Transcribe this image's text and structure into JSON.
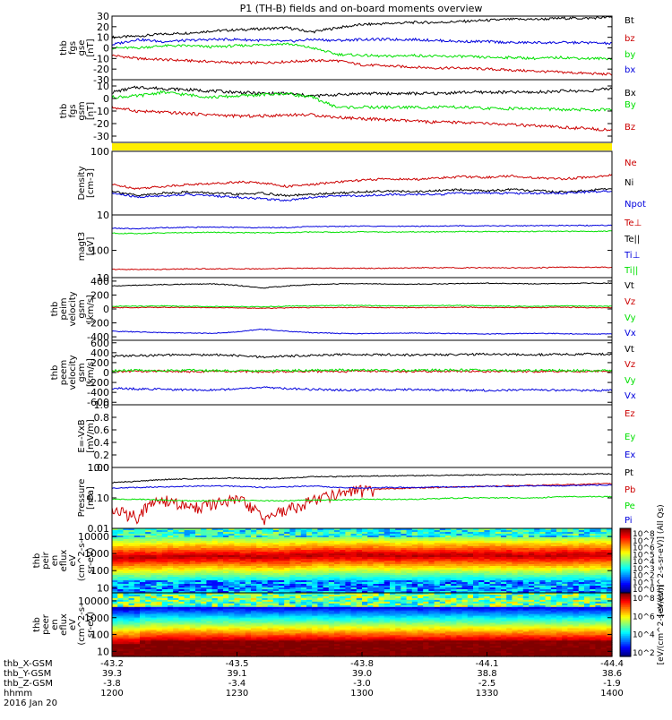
{
  "title": "P1 (TH-B) fields and on-board moments overview",
  "colors": {
    "black": "#000000",
    "red": "#cc0000",
    "green": "#00e000",
    "blue": "#0000dd",
    "yellow": "#ffee00"
  },
  "chart_data": [
    {
      "type": "line",
      "panel": "fgs_gse",
      "ylabel_lines": [
        "thb",
        "fgs",
        "gse",
        "[nT]"
      ],
      "ylim": [
        -30,
        30
      ],
      "yticks": [
        "30",
        "20",
        "10",
        "0",
        "-10",
        "-20",
        "-30"
      ],
      "series": [
        {
          "name": "Bt",
          "color": "black",
          "values": [
            10,
            11,
            13,
            14,
            16,
            17,
            18,
            19,
            15,
            19,
            22,
            23,
            24,
            24,
            25,
            26,
            27,
            27,
            28,
            28,
            29
          ]
        },
        {
          "name": "bz",
          "color": "red",
          "values": [
            -7,
            -10,
            -11,
            -12,
            -13,
            -14,
            -14,
            -13,
            -12,
            -12,
            -16,
            -17,
            -18,
            -19,
            -19,
            -20,
            -21,
            -22,
            -23,
            -24,
            -25
          ]
        },
        {
          "name": "by",
          "color": "green",
          "values": [
            0,
            0,
            2,
            2,
            1,
            2,
            3,
            4,
            0,
            -6,
            -7,
            -8,
            -7,
            -8,
            -8,
            -9,
            -9,
            -10,
            -9,
            -10,
            -10
          ]
        },
        {
          "name": "bx",
          "color": "blue",
          "values": [
            3,
            8,
            6,
            7,
            8,
            8,
            7,
            6,
            8,
            7,
            8,
            8,
            8,
            7,
            6,
            6,
            5,
            5,
            5,
            5,
            4
          ]
        }
      ]
    },
    {
      "type": "line",
      "panel": "fgs_gsm",
      "ylabel_lines": [
        "thb",
        "fgs",
        "gsm",
        "[nT]"
      ],
      "ylim": [
        -35,
        15
      ],
      "yticks": [
        "10",
        "0",
        "-10",
        "-20",
        "-30"
      ],
      "series": [
        {
          "name": "Bx",
          "color": "black",
          "values": [
            5,
            9,
            8,
            7,
            6,
            5,
            4,
            4,
            2,
            3,
            4,
            4,
            4,
            4,
            5,
            5,
            5,
            5,
            6,
            6,
            8
          ]
        },
        {
          "name": "By",
          "color": "green",
          "values": [
            1,
            2,
            5,
            3,
            1,
            2,
            3,
            4,
            1,
            -7,
            -7,
            -7,
            -7,
            -7,
            -7,
            -8,
            -8,
            -8,
            -9,
            -9,
            -9
          ]
        },
        {
          "name": "Bz",
          "color": "red",
          "values": [
            -7,
            -10,
            -11,
            -12,
            -13,
            -14,
            -14,
            -13,
            -13,
            -15,
            -16,
            -17,
            -18,
            -19,
            -19,
            -20,
            -21,
            -22,
            -23,
            -24,
            -25
          ]
        }
      ]
    },
    {
      "type": "line",
      "panel": "density",
      "scale": "log",
      "ylabel_lines": [
        "Density",
        "[cm-3]"
      ],
      "ylim": [
        10,
        100
      ],
      "yticks": [
        "100",
        "10"
      ],
      "series": [
        {
          "name": "Ne",
          "color": "red",
          "values": [
            30,
            26,
            28,
            30,
            31,
            33,
            32,
            28,
            30,
            33,
            35,
            37,
            36,
            38,
            40,
            39,
            41,
            38,
            37,
            39,
            42
          ]
        },
        {
          "name": "Ni",
          "color": "black",
          "values": [
            24,
            20,
            22,
            23,
            22,
            21,
            22,
            20,
            21,
            22,
            23,
            24,
            23,
            24,
            25,
            24,
            25,
            24,
            23,
            24,
            26
          ]
        },
        {
          "name": "Npot",
          "color": "blue",
          "values": [
            22,
            19,
            20,
            21,
            20,
            19,
            18,
            17,
            19,
            20,
            20,
            21,
            21,
            21,
            22,
            22,
            22,
            22,
            22,
            23,
            24
          ]
        }
      ]
    },
    {
      "type": "line",
      "panel": "temperature",
      "scale": "log",
      "ylabel_lines": [
        "magt3",
        "[eV]"
      ],
      "ylim": [
        10,
        2000
      ],
      "yticks": [
        "100",
        "10"
      ],
      "series": [
        {
          "name": "Te⊥",
          "color": "red",
          "values": [
            20,
            20,
            20,
            21,
            21,
            21,
            21,
            22,
            22,
            22,
            22,
            22,
            23,
            23,
            23,
            23,
            23,
            23,
            24,
            24,
            24
          ]
        },
        {
          "name": "Te||",
          "color": "black",
          "values": []
        },
        {
          "name": "Ti⊥",
          "color": "blue",
          "values": [
            650,
            620,
            680,
            700,
            720,
            700,
            680,
            690,
            750,
            760,
            780,
            760,
            770,
            780,
            800,
            790,
            800,
            810,
            820,
            820,
            830
          ]
        },
        {
          "name": "Ti||",
          "color": "green",
          "values": [
            430,
            410,
            440,
            450,
            460,
            450,
            440,
            450,
            470,
            470,
            480,
            470,
            480,
            480,
            490,
            490,
            490,
            500,
            500,
            500,
            510
          ]
        }
      ]
    },
    {
      "type": "line",
      "panel": "peim_velocity",
      "ylabel_lines": [
        "thb",
        "peim",
        "velocity",
        "gsm",
        "[km/s]"
      ],
      "ylim": [
        -450,
        450
      ],
      "yticks": [
        "400",
        "200",
        "0",
        "-200",
        "-400"
      ],
      "series": [
        {
          "name": "Vt",
          "color": "black",
          "values": [
            330,
            340,
            350,
            355,
            360,
            340,
            300,
            330,
            350,
            360,
            365,
            360,
            355,
            360,
            365,
            370,
            365,
            360,
            365,
            370,
            370
          ]
        },
        {
          "name": "Vz",
          "color": "red",
          "values": [
            20,
            20,
            25,
            20,
            20,
            15,
            10,
            15,
            20,
            20,
            25,
            20,
            20,
            20,
            25,
            20,
            20,
            20,
            25,
            20,
            20
          ]
        },
        {
          "name": "Vy",
          "color": "green",
          "values": [
            40,
            40,
            45,
            40,
            35,
            35,
            30,
            40,
            45,
            50,
            50,
            45,
            45,
            50,
            50,
            45,
            40,
            40,
            45,
            40,
            40
          ]
        },
        {
          "name": "Vx",
          "color": "blue",
          "values": [
            -320,
            -330,
            -340,
            -345,
            -350,
            -330,
            -290,
            -320,
            -340,
            -350,
            -355,
            -350,
            -345,
            -350,
            -355,
            -360,
            -355,
            -350,
            -355,
            -360,
            -360
          ]
        }
      ]
    },
    {
      "type": "line",
      "panel": "peem_velocity",
      "ylabel_lines": [
        "thb",
        "peem",
        "velocity",
        "gsm",
        "[km/s]"
      ],
      "ylim": [
        -650,
        650
      ],
      "yticks": [
        "600",
        "400",
        "200",
        "0",
        "-200",
        "-400",
        "-600"
      ],
      "series": [
        {
          "name": "Vt",
          "color": "black",
          "values": [
            330,
            340,
            350,
            355,
            360,
            340,
            310,
            330,
            350,
            360,
            365,
            360,
            355,
            360,
            365,
            370,
            365,
            360,
            365,
            370,
            370
          ]
        },
        {
          "name": "Vz",
          "color": "red",
          "values": [
            20,
            25,
            30,
            20,
            25,
            20,
            15,
            20,
            25,
            20,
            30,
            25,
            20,
            25,
            30,
            20,
            25,
            20,
            25,
            20,
            25
          ]
        },
        {
          "name": "Vy",
          "color": "green",
          "values": [
            40,
            45,
            40,
            45,
            40,
            35,
            35,
            40,
            45,
            50,
            50,
            45,
            45,
            50,
            50,
            45,
            40,
            45,
            45,
            40,
            40
          ]
        },
        {
          "name": "Vx",
          "color": "blue",
          "values": [
            -320,
            -330,
            -340,
            -350,
            -350,
            -330,
            -300,
            -320,
            -340,
            -350,
            -355,
            -350,
            -345,
            -350,
            -355,
            -360,
            -355,
            -350,
            -355,
            -360,
            -360
          ]
        }
      ]
    },
    {
      "type": "line",
      "panel": "efield",
      "ylabel_lines": [
        "E=-VxB",
        "[mV/m]"
      ],
      "ylim": [
        0,
        1
      ],
      "yticks": [
        "1.0",
        "0.8",
        "0.6",
        "0.4",
        "0.2",
        "0.0"
      ],
      "series": [
        {
          "name": "Ez",
          "color": "red",
          "values": []
        },
        {
          "name": "Ey",
          "color": "green",
          "values": []
        },
        {
          "name": "Ex",
          "color": "blue",
          "values": []
        }
      ]
    },
    {
      "type": "line",
      "panel": "pressure",
      "scale": "log",
      "ylabel_lines": [
        "Pressure",
        "[nPa]"
      ],
      "ylim": [
        0.01,
        1.0
      ],
      "yticks": [
        "1.00",
        "0.10",
        "0.01"
      ],
      "series": [
        {
          "name": "Pt",
          "color": "black",
          "values": [
            0.32,
            0.35,
            0.4,
            0.42,
            0.44,
            0.45,
            0.42,
            0.44,
            0.5,
            0.5,
            0.52,
            0.53,
            0.54,
            0.55,
            0.56,
            0.57,
            0.58,
            0.59,
            0.6,
            0.61,
            0.62
          ]
        },
        {
          "name": "Pb",
          "color": "red",
          "values": [
            0.04,
            0.025,
            0.09,
            0.05,
            0.06,
            0.09,
            0.02,
            0.04,
            0.08,
            0.15,
            0.18,
            0.2,
            0.21,
            0.22,
            0.23,
            0.24,
            0.25,
            0.26,
            0.27,
            0.28,
            0.3
          ]
        },
        {
          "name": "Pe",
          "color": "green",
          "values": [
            0.09,
            0.09,
            0.085,
            0.08,
            0.08,
            0.085,
            0.08,
            0.08,
            0.085,
            0.085,
            0.09,
            0.09,
            0.09,
            0.095,
            0.1,
            0.1,
            0.1,
            0.1,
            0.11,
            0.11,
            0.11
          ]
        },
        {
          "name": "Pi",
          "color": "blue",
          "values": [
            0.21,
            0.22,
            0.23,
            0.24,
            0.25,
            0.24,
            0.22,
            0.23,
            0.25,
            0.22,
            0.21,
            0.22,
            0.22,
            0.23,
            0.23,
            0.24,
            0.24,
            0.25,
            0.25,
            0.26,
            0.27
          ]
        }
      ]
    },
    {
      "type": "heatmap",
      "panel": "peir_spectrogram",
      "scale": "log",
      "ylabel_lines": [
        "thb",
        "peir",
        "en",
        "eflux",
        "eV",
        "(cm^2-s-",
        "sr-eV)"
      ],
      "ylim": [
        5,
        30000
      ],
      "yticks": [
        "10000",
        "1000",
        "100",
        "10"
      ],
      "peak_energy_ev": [
        600,
        600,
        650,
        700,
        700,
        650,
        650,
        750,
        800,
        800,
        800,
        750,
        750,
        800,
        800,
        800,
        750,
        750,
        800,
        800,
        800
      ],
      "colorbar": {
        "label": "[eV/(cm^2-s-sr-eV)] (All Qs)",
        "ticks": [
          "10^8",
          "10^7",
          "10^6",
          "10^5",
          "10^4",
          "10^3",
          "10^2",
          "10^1",
          "10^0"
        ]
      }
    },
    {
      "type": "heatmap",
      "panel": "peer_spectrogram",
      "scale": "log",
      "ylabel_lines": [
        "thb",
        "peer",
        "en",
        "eflux",
        "eV",
        "(cm^2-s-",
        "sr-eV)"
      ],
      "ylim": [
        5,
        30000
      ],
      "yticks": [
        "10000",
        "1000",
        "100",
        "10"
      ],
      "peak_energy_ev": [
        30,
        40,
        40,
        40,
        40,
        40,
        40,
        40,
        40,
        40,
        40,
        40,
        40,
        40,
        40,
        40,
        40,
        40,
        40,
        40,
        40
      ],
      "colorbar": {
        "label": "[eV/(cm^2-s-sr-eV)]",
        "ticks": [
          "10^8",
          "10^6",
          "10^4",
          "10^2"
        ]
      }
    }
  ],
  "x_axis": {
    "row_labels": [
      "thb_X-GSM",
      "thb_Y-GSM",
      "thb_Z-GSM",
      "hhmm",
      "2016 Jan 20"
    ],
    "ticks": [
      {
        "values": [
          "-43.2",
          "39.3",
          "-3.8",
          "1200"
        ]
      },
      {
        "values": [
          "-43.5",
          "39.1",
          "-3.4",
          "1230"
        ]
      },
      {
        "values": [
          "-43.8",
          "39.0",
          "-3.0",
          "1300"
        ]
      },
      {
        "values": [
          "-44.1",
          "38.8",
          "-2.5",
          "1330"
        ]
      },
      {
        "values": [
          "-44.4",
          "38.6",
          "-1.9",
          "1400"
        ]
      }
    ]
  }
}
